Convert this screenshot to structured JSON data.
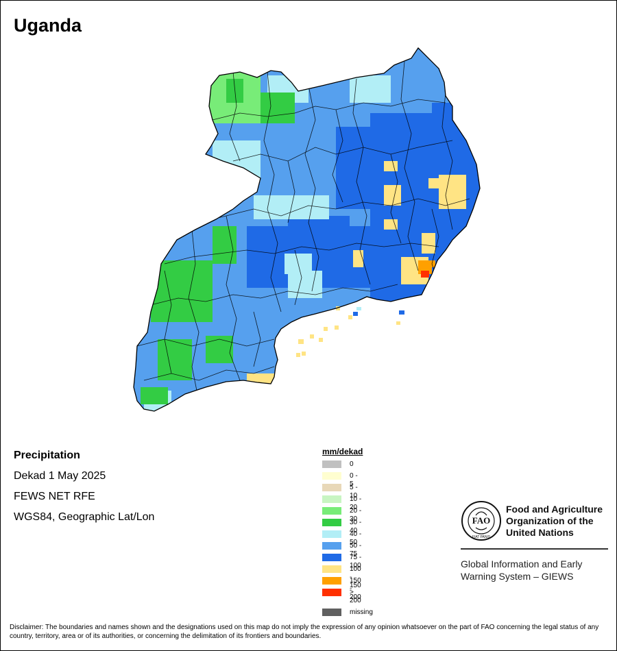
{
  "map": {
    "title": "Uganda",
    "info": {
      "variable": "Precipitation",
      "period": "Dekad 1 May 2025",
      "source": "FEWS NET RFE",
      "projection": "WGS84, Geographic Lat/Lon"
    },
    "legend": {
      "title": "mm/dekad",
      "classes": [
        {
          "label": "0",
          "color": "#c0c0c0"
        },
        {
          "label": "0 - 5",
          "color": "#fffed0"
        },
        {
          "label": "5 - 10",
          "color": "#e8d8b8"
        },
        {
          "label": "10 - 20",
          "color": "#c8f5c2"
        },
        {
          "label": "20 - 30",
          "color": "#78ec78"
        },
        {
          "label": "30 - 40",
          "color": "#33cc44"
        },
        {
          "label": "40 - 50",
          "color": "#b2eef6"
        },
        {
          "label": "50 - 75",
          "color": "#56a0ee"
        },
        {
          "label": "75 - 100",
          "color": "#1f6ae6"
        },
        {
          "label": "100 - 150",
          "color": "#ffe484"
        },
        {
          "label": "150 - 200",
          "color": "#ffa000"
        },
        {
          "label": "> 200",
          "color": "#ff3000"
        }
      ],
      "missing": {
        "label": "missing",
        "color": "#606060"
      }
    }
  },
  "branding": {
    "org_line1": "Food and Agriculture",
    "org_line2": "Organization of the",
    "org_line3": "United Nations",
    "system_line1": "Global Information and Early",
    "system_line2": "Warning System – GIEWS",
    "logo_letters": "FAO",
    "logo_motto": "FIAT PANIS"
  },
  "disclaimer": "Disclaimer: The boundaries and names shown and the designations used on this map do not imply the expression of any opinion whatsoever on the part of FAO concerning the legal status of any country, territory, area or of its authorities, or concerning the delimitation of its frontiers and boundaries."
}
